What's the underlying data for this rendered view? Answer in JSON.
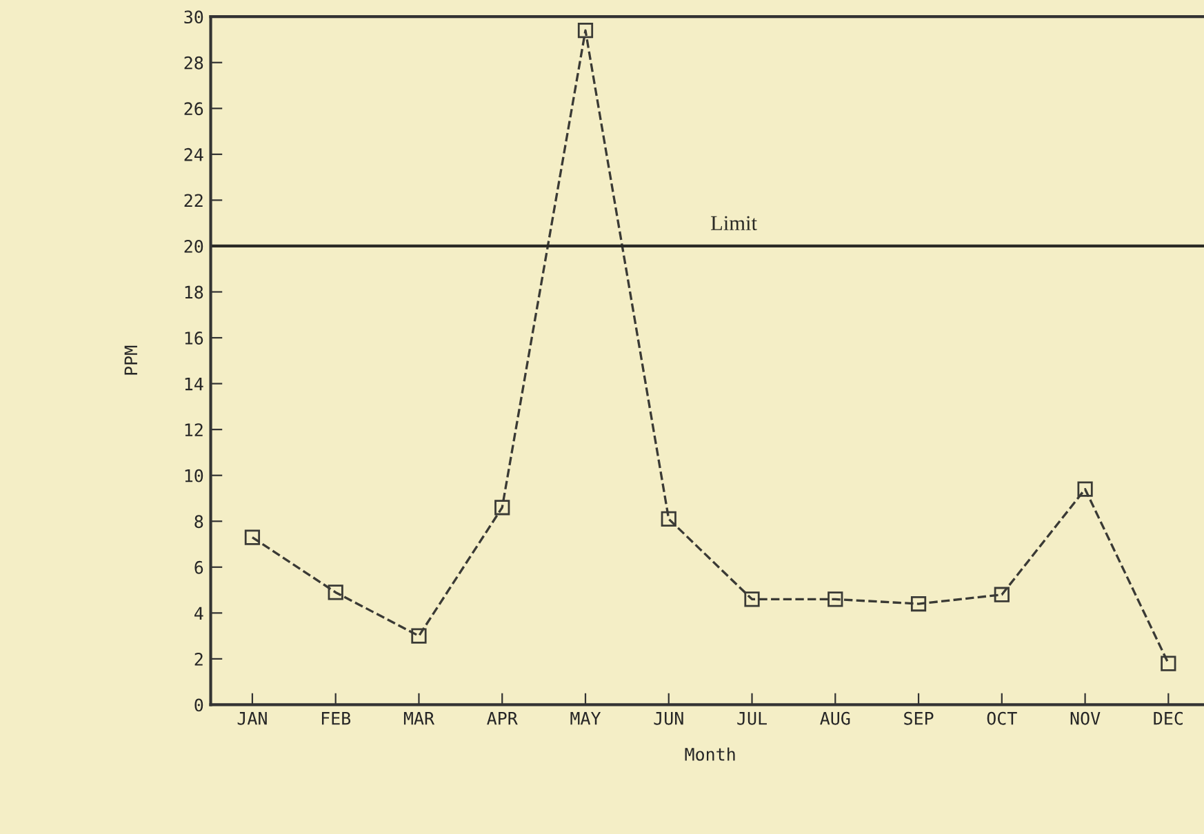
{
  "chart_data": {
    "type": "line",
    "xlabel": "Month",
    "ylabel": "PPM",
    "categories": [
      "JAN",
      "FEB",
      "MAR",
      "APR",
      "MAY",
      "JUN",
      "JUL",
      "AUG",
      "SEP",
      "OCT",
      "NOV",
      "DEC"
    ],
    "series": [
      {
        "color": "#3a3a35",
        "values": [
          7.3,
          4.9,
          3.0,
          8.6,
          29.4,
          8.1,
          4.6,
          4.6,
          4.4,
          4.8,
          9.4,
          1.8
        ]
      }
    ],
    "ylim": [
      0,
      30
    ],
    "yticks": [
      0,
      2,
      4,
      6,
      8,
      10,
      12,
      14,
      16,
      18,
      20,
      22,
      24,
      26,
      28,
      30
    ],
    "ref_lines": [
      {
        "axis": "y",
        "value": 20,
        "label": "Limit",
        "color": "#2a2a25"
      }
    ],
    "marker": "square",
    "line_style": "dashed",
    "grid": false,
    "legend": false
  }
}
